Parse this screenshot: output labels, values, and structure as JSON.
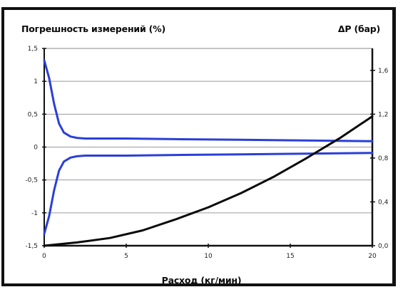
{
  "chart_data": {
    "type": "line",
    "title_left": "Погрешность измерений (%)",
    "title_right": "ΔP (бар)",
    "xlabel": "Расход (кг/мин)",
    "xlim": [
      0,
      20
    ],
    "ylim_left": [
      -1.5,
      1.5
    ],
    "ylim_right": [
      0.0,
      1.8
    ],
    "x_ticks": [
      "0",
      "5",
      "10",
      "15",
      "20"
    ],
    "y_left_ticks": [
      "1,5",
      "1",
      "0,5",
      "0",
      "-0,5",
      "-1",
      "-1,5"
    ],
    "y_right_ticks": [
      "1,6",
      "1,2",
      "0,8",
      "0,4",
      "0,0"
    ],
    "grid": true,
    "series": [
      {
        "axis": "left",
        "color": "#2a3fd8",
        "x": [
          0,
          0.3,
          0.6,
          0.9,
          1.2,
          1.6,
          2.0,
          2.5,
          3,
          5,
          8,
          12,
          16,
          20
        ],
        "values": [
          1.32,
          1.05,
          0.66,
          0.36,
          0.22,
          0.16,
          0.14,
          0.13,
          0.13,
          0.13,
          0.12,
          0.11,
          0.1,
          0.09
        ]
      },
      {
        "axis": "left",
        "color": "#2a3fd8",
        "x": [
          0,
          0.3,
          0.6,
          0.9,
          1.2,
          1.6,
          2.0,
          2.5,
          3,
          5,
          8,
          12,
          16,
          20
        ],
        "values": [
          -1.32,
          -1.05,
          -0.66,
          -0.36,
          -0.22,
          -0.16,
          -0.14,
          -0.13,
          -0.13,
          -0.13,
          -0.12,
          -0.11,
          -0.1,
          -0.09
        ]
      },
      {
        "axis": "right",
        "color": "#0a0a0a",
        "x": [
          0,
          2,
          4,
          6,
          8,
          10,
          12,
          14,
          16,
          18,
          20
        ],
        "values": [
          0.0,
          0.03,
          0.07,
          0.14,
          0.24,
          0.35,
          0.48,
          0.63,
          0.8,
          0.98,
          1.18
        ]
      }
    ]
  }
}
